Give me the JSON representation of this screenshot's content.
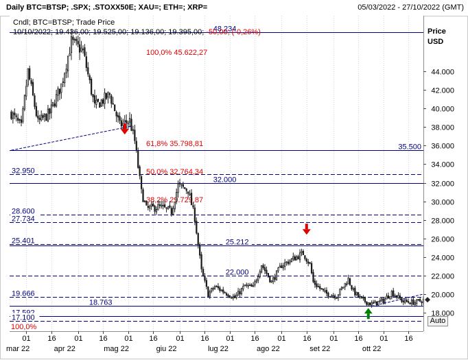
{
  "header": {
    "title": "Daily BTC=BTSP; .SPX; .STOXX50E; XAU=; ETH=; XRP=",
    "date_range": "05/03/2022 - 27/10/2022 (GMT)"
  },
  "legend": {
    "series_label": "Cndl; BTC=BTSP; Trade Price",
    "ohlc_text": "10/10/2022; 19.436,00; 19.525,00; 19.136,00; 19.395,00;",
    "change_text": "-50,00; (-0,26%)"
  },
  "axis": {
    "price_label": "Price",
    "currency_label": "USD",
    "auto_button": "Auto"
  },
  "colors": {
    "candle": "#1c1c1c",
    "hline": "#000080",
    "fib": "#e00000",
    "arrow_down": "#e00000",
    "arrow_up": "#008000",
    "marker": "#222222"
  },
  "chart_data": {
    "type": "candlestick",
    "instrument": "BTC=BTSP",
    "currency": "USD",
    "ylim": [
      16000,
      50000
    ],
    "y_ticks": [
      {
        "v": 18000,
        "label": "18.000"
      },
      {
        "v": 20000,
        "label": "20.000"
      },
      {
        "v": 22000,
        "label": "22.000"
      },
      {
        "v": 24000,
        "label": "24.000"
      },
      {
        "v": 26000,
        "label": "26.000"
      },
      {
        "v": 28000,
        "label": "28.000"
      },
      {
        "v": 30000,
        "label": "30.000"
      },
      {
        "v": 32000,
        "label": "32.000"
      },
      {
        "v": 34000,
        "label": "34.000"
      },
      {
        "v": 36000,
        "label": "36.000"
      },
      {
        "v": 38000,
        "label": "38.000"
      },
      {
        "v": 40000,
        "label": "40.000"
      },
      {
        "v": 42000,
        "label": "42.000"
      },
      {
        "v": 44000,
        "label": "44.000"
      }
    ],
    "x_range": [
      "2022-02-19",
      "2022-10-25"
    ],
    "x_day_ticks": [
      {
        "date": "2022-03-01",
        "label": "01"
      },
      {
        "date": "2022-03-16",
        "label": "16"
      },
      {
        "date": "2022-04-01",
        "label": "01"
      },
      {
        "date": "2022-04-16",
        "label": "16"
      },
      {
        "date": "2022-05-01",
        "label": "01"
      },
      {
        "date": "2022-05-16",
        "label": "16"
      },
      {
        "date": "2022-06-01",
        "label": "01"
      },
      {
        "date": "2022-06-16",
        "label": "16"
      },
      {
        "date": "2022-07-01",
        "label": "01"
      },
      {
        "date": "2022-07-16",
        "label": "16"
      },
      {
        "date": "2022-08-01",
        "label": "01"
      },
      {
        "date": "2022-08-16",
        "label": "16"
      },
      {
        "date": "2022-09-01",
        "label": "01"
      },
      {
        "date": "2022-09-16",
        "label": "16"
      },
      {
        "date": "2022-10-01",
        "label": "01"
      },
      {
        "date": "2022-10-16",
        "label": "16"
      }
    ],
    "x_month_labels": [
      {
        "date": "2022-02-24",
        "label": "mar 22"
      },
      {
        "date": "2022-03-24",
        "label": "apr 22"
      },
      {
        "date": "2022-04-24",
        "label": "mag 22"
      },
      {
        "date": "2022-05-24",
        "label": "giu 22"
      },
      {
        "date": "2022-06-24",
        "label": "lug 22"
      },
      {
        "date": "2022-07-24",
        "label": "ago 22"
      },
      {
        "date": "2022-08-24",
        "label": "set 22"
      },
      {
        "date": "2022-09-24",
        "label": "ott 22"
      }
    ],
    "ohlc_anchors": [
      [
        "2022-02-20",
        39500
      ],
      [
        "2022-02-26",
        38000
      ],
      [
        "2022-03-02",
        44000
      ],
      [
        "2022-03-08",
        38500
      ],
      [
        "2022-03-15",
        39500
      ],
      [
        "2022-03-22",
        42500
      ],
      [
        "2022-03-28",
        47200
      ],
      [
        "2022-04-04",
        46200
      ],
      [
        "2022-04-11",
        40200
      ],
      [
        "2022-04-20",
        41500
      ],
      [
        "2022-04-26",
        38200
      ],
      [
        "2022-05-02",
        38700
      ],
      [
        "2022-05-05",
        36500
      ],
      [
        "2022-05-09",
        31000
      ],
      [
        "2022-05-12",
        29200
      ],
      [
        "2022-05-20",
        29400
      ],
      [
        "2022-05-27",
        28900
      ],
      [
        "2022-05-31",
        31700
      ],
      [
        "2022-06-06",
        31200
      ],
      [
        "2022-06-10",
        28200
      ],
      [
        "2022-06-14",
        22500
      ],
      [
        "2022-06-18",
        20000
      ],
      [
        "2022-06-22",
        20800
      ],
      [
        "2022-06-28",
        20200
      ],
      [
        "2022-07-04",
        19600
      ],
      [
        "2022-07-10",
        20900
      ],
      [
        "2022-07-15",
        20700
      ],
      [
        "2022-07-20",
        23200
      ],
      [
        "2022-07-26",
        21300
      ],
      [
        "2022-08-01",
        23100
      ],
      [
        "2022-08-08",
        23800
      ],
      [
        "2022-08-14",
        24400
      ],
      [
        "2022-08-18",
        23200
      ],
      [
        "2022-08-20",
        21300
      ],
      [
        "2022-08-27",
        20100
      ],
      [
        "2022-09-03",
        19800
      ],
      [
        "2022-09-10",
        21600
      ],
      [
        "2022-09-13",
        20300
      ],
      [
        "2022-09-18",
        19400
      ],
      [
        "2022-09-24",
        18900
      ],
      [
        "2022-10-01",
        19300
      ],
      [
        "2022-10-06",
        20200
      ],
      [
        "2022-10-13",
        19200
      ],
      [
        "2022-10-20",
        19100
      ],
      [
        "2022-10-25",
        19350
      ]
    ],
    "horizontal_levels": [
      {
        "value": 48234,
        "label": "48.234",
        "style": "solid",
        "label_pos": "top-center"
      },
      {
        "value": 35500,
        "label": "35.500",
        "style": "solid",
        "label_pos": "right"
      },
      {
        "value": 32950,
        "label": "32.950",
        "style": "dashed",
        "label_pos": "left"
      },
      {
        "value": 32000,
        "label": "32.000",
        "style": "solid",
        "label_pos": "center-right"
      },
      {
        "value": 28600,
        "label": "28.600",
        "style": "dashed",
        "label_pos": "left"
      },
      {
        "value": 27734,
        "label": "27.734",
        "style": "dashed",
        "label_pos": "left"
      },
      {
        "value": 25401,
        "label": "25.401",
        "style": "dashed",
        "label_pos": "left"
      },
      {
        "value": 25212,
        "label": "25.212",
        "style": "solid",
        "label_pos": "center"
      },
      {
        "value": 22000,
        "label": "22.000",
        "style": "dashed",
        "label_pos": "center"
      },
      {
        "value": 19666,
        "label": "19.666",
        "style": "dashed",
        "label_pos": "left"
      },
      {
        "value": 18763,
        "label": "18.763",
        "style": "solid",
        "label_pos": "center-left"
      },
      {
        "value": 17592,
        "label": "17.592",
        "style": "solid",
        "label_pos": "left"
      },
      {
        "value": 17100,
        "label": "17.100",
        "style": "dashed",
        "label_pos": "left"
      }
    ],
    "fibonacci": [
      {
        "label": "100,0% 45.622,27",
        "value": 45622
      },
      {
        "label": "61,8% 35.798,81",
        "value": 35799
      },
      {
        "label": "50,0% 32.764,34",
        "value": 32764
      },
      {
        "label": "38,2% 29.729,87",
        "value": 29730
      },
      {
        "label": "100,0%",
        "value": 17100
      }
    ],
    "trendlines": [
      {
        "from": [
          "2022-02-20",
          35500
        ],
        "to": [
          "2022-05-03",
          38100
        ],
        "style": "dashed"
      },
      {
        "from": [
          "2022-09-24",
          18700
        ],
        "to": [
          "2022-10-25",
          20000
        ],
        "style": "dashed"
      }
    ],
    "arrows": [
      {
        "date": "2022-04-29",
        "value": 37500,
        "direction": "down",
        "color": "#e00000"
      },
      {
        "date": "2022-08-16",
        "value": 26700,
        "direction": "down",
        "color": "#e00000"
      },
      {
        "date": "2022-09-22",
        "value": 18200,
        "direction": "up",
        "color": "#008000"
      }
    ],
    "last_price_marker": {
      "value": 19395
    }
  }
}
